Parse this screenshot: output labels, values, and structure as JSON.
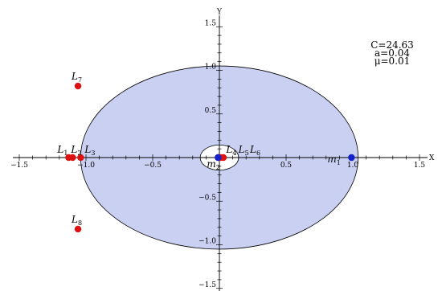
{
  "chart_data": {
    "type": "scatter",
    "xlabel": "X",
    "ylabel": "Y",
    "xlim": [
      -1.5,
      1.5
    ],
    "ylim": [
      -1.5,
      1.5
    ],
    "x_ticks": [
      {
        "value": -1.5,
        "label": "−1.5"
      },
      {
        "value": -1.0,
        "label": "−1.0"
      },
      {
        "value": -0.5,
        "label": "−0.5"
      },
      {
        "value": 0.5,
        "label": "0.5"
      },
      {
        "value": 1.0,
        "label": "1.0"
      },
      {
        "value": 1.5,
        "label": "1.5"
      }
    ],
    "y_ticks": [
      {
        "value": 1.5,
        "label": "1.5"
      },
      {
        "value": 1.0,
        "label": "1.0"
      },
      {
        "value": 0.5,
        "label": "0.5"
      },
      {
        "value": -0.5,
        "label": "−0.5"
      },
      {
        "value": -1.0,
        "label": "−1.0"
      },
      {
        "value": -1.5,
        "label": "−1.5"
      }
    ],
    "parameters": [
      "C=24.63",
      "a=0.04",
      "μ=0.01"
    ],
    "regions": {
      "outer_ellipse": {
        "cx": 0.0,
        "cy": 0.0,
        "rx": 1.04,
        "ry": 1.05,
        "color": "#c9d0f2"
      },
      "inner_ellipse": {
        "cx": 0.0,
        "cy": 0.0,
        "rx": 0.09,
        "ry": 0.09,
        "color": "#ffffff"
      }
    },
    "points": [
      {
        "name": "L",
        "sub": "1",
        "x": -1.13,
        "y": 0.0,
        "color": "#dd1111"
      },
      {
        "name": "L",
        "sub": "2",
        "x": -1.1,
        "y": 0.0,
        "color": "#dd1111"
      },
      {
        "name": "L",
        "sub": "3",
        "x": -1.04,
        "y": 0.0,
        "color": "#dd1111"
      },
      {
        "name": "L",
        "sub": "4",
        "x": -0.01,
        "y": 0.0,
        "color": "#dd1111"
      },
      {
        "name": "L",
        "sub": "5",
        "x": 0.01,
        "y": 0.0,
        "color": "#dd1111"
      },
      {
        "name": "L",
        "sub": "6",
        "x": 0.03,
        "y": 0.0,
        "color": "#dd1111"
      },
      {
        "name": "L",
        "sub": "7",
        "x": -1.06,
        "y": 0.82,
        "color": "#dd1111"
      },
      {
        "name": "L",
        "sub": "8",
        "x": -1.06,
        "y": -0.82,
        "color": "#dd1111"
      },
      {
        "name": "m",
        "sub": "1",
        "x": 0.99,
        "y": 0.0,
        "color": "#1122cc"
      },
      {
        "name": "m",
        "sub": "2",
        "x": -0.01,
        "y": 0.0,
        "color": "#1122cc"
      }
    ]
  }
}
